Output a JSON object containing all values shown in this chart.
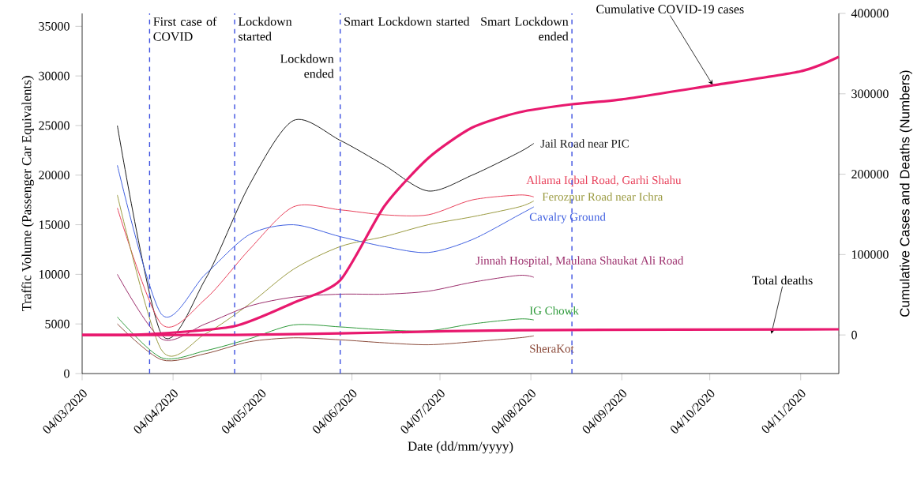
{
  "chart_data": {
    "type": "line",
    "xlabel": "Date (dd/mm/yyyy)",
    "ylabel": "Traffic Volume (Passenger Car Equivalents)",
    "y2label": "Cumulative Cases and Deaths (Numbers)",
    "xlim": [
      "2020-03-04",
      "2020-11-17"
    ],
    "xticks": [
      {
        "value": "2020-03-04",
        "label": "04/03/2020"
      },
      {
        "value": "2020-04-04",
        "label": "04/04/2020"
      },
      {
        "value": "2020-05-04",
        "label": "04/05/2020"
      },
      {
        "value": "2020-06-04",
        "label": "04/06/2020"
      },
      {
        "value": "2020-07-04",
        "label": "04/07/2020"
      },
      {
        "value": "2020-08-04",
        "label": "04/08/2020"
      },
      {
        "value": "2020-09-04",
        "label": "04/09/2020"
      },
      {
        "value": "2020-10-04",
        "label": "04/10/2020"
      },
      {
        "value": "2020-11-04",
        "label": "04/11/2020"
      }
    ],
    "ylim": [
      0,
      36300
    ],
    "yticks": [
      0,
      5000,
      10000,
      15000,
      20000,
      25000,
      30000,
      35000
    ],
    "y2lim": [
      -48000,
      400000
    ],
    "y2ticks": [
      0,
      100000,
      200000,
      300000,
      400000
    ],
    "grid": false,
    "line_style": "solid",
    "ref_lines": [
      {
        "axis": "x",
        "value": "2020-03-27",
        "label": "First case of COVID",
        "color": "#3b4fe0",
        "line_style": "dashed"
      },
      {
        "axis": "x",
        "value": "2020-04-25",
        "label": "Lockdown started",
        "color": "#3b4fe0",
        "line_style": "dashed"
      },
      {
        "axis": "x",
        "value": "2020-05-31",
        "label": "Smart Lockdown started",
        "color": "#3b4fe0",
        "line_style": "dashed"
      },
      {
        "axis": "x",
        "value": "2020-08-18",
        "label": "Smart Lockdown ended",
        "color": "#3b4fe0",
        "line_style": "dashed"
      }
    ],
    "annotations": [
      {
        "text": "Cumulative COVID-19 cases",
        "x": "2020-10-05",
        "y": 29100
      },
      {
        "text": "Total deaths",
        "x": "2020-10-25",
        "y": 4000
      },
      {
        "text": "Lockdown ended",
        "x": "2020-05-31",
        "y": 31000
      }
    ],
    "x": [
      "2020-03-16",
      "2020-03-31",
      "2020-04-15",
      "2020-04-30",
      "2020-05-15",
      "2020-05-31",
      "2020-06-15",
      "2020-06-30",
      "2020-07-15",
      "2020-07-31",
      "2020-08-05"
    ],
    "series": [
      {
        "name": "Jail Road near PIC",
        "color": "#1a1a1a",
        "values": [
          25000,
          4000,
          9500,
          19000,
          25500,
          23500,
          21000,
          18400,
          20000,
          22300,
          23200
        ]
      },
      {
        "name": "Allama Iqbal Road, Garhi Shahu",
        "color": "#e8405a",
        "values": [
          16700,
          5000,
          7500,
          12500,
          16800,
          16500,
          16000,
          16000,
          17500,
          18000,
          17800
        ]
      },
      {
        "name": "Ferozpur Road near Ichra",
        "color": "#9a9a40",
        "values": [
          18000,
          2400,
          4000,
          7000,
          10500,
          12800,
          13800,
          15000,
          15800,
          16800,
          17400
        ]
      },
      {
        "name": "Cavalry Ground",
        "color": "#3f5fe0",
        "values": [
          21000,
          6000,
          10000,
          14000,
          15000,
          13800,
          12800,
          12200,
          13500,
          16000,
          16800
        ]
      },
      {
        "name": "Jinnah Hospital, Maulana Shaukat Ali Road",
        "color": "#9b2d6b",
        "values": [
          10000,
          3500,
          5000,
          6800,
          7700,
          8000,
          8000,
          8300,
          9200,
          9900,
          9700
        ]
      },
      {
        "name": "IG Chowk",
        "color": "#2e9a3a",
        "values": [
          5700,
          1600,
          2300,
          3500,
          4900,
          4700,
          4400,
          4300,
          5000,
          5500,
          5400
        ]
      },
      {
        "name": "SheraKot",
        "color": "#8b4a3a",
        "values": [
          5000,
          1400,
          2000,
          3200,
          3600,
          3400,
          3100,
          2900,
          3200,
          3600,
          3800
        ]
      },
      {
        "axis": "y2",
        "color": "#e8196e",
        "x": [
          "2020-03-04",
          "2020-03-27",
          "2020-04-25",
          "2020-05-15",
          "2020-05-31",
          "2020-06-15",
          "2020-06-30",
          "2020-07-15",
          "2020-07-31",
          "2020-08-18",
          "2020-09-04",
          "2020-10-04",
          "2020-11-04",
          "2020-11-17"
        ],
        "values": [
          0,
          1000,
          11000,
          40000,
          68000,
          160000,
          220000,
          258000,
          277000,
          287000,
          293000,
          310000,
          328000,
          346000
        ]
      },
      {
        "axis": "y2",
        "color": "#e8196e",
        "x": [
          "2020-03-04",
          "2020-04-25",
          "2020-05-31",
          "2020-07-31",
          "2020-11-17"
        ],
        "values": [
          0,
          0,
          2000,
          6000,
          7000
        ]
      }
    ]
  }
}
